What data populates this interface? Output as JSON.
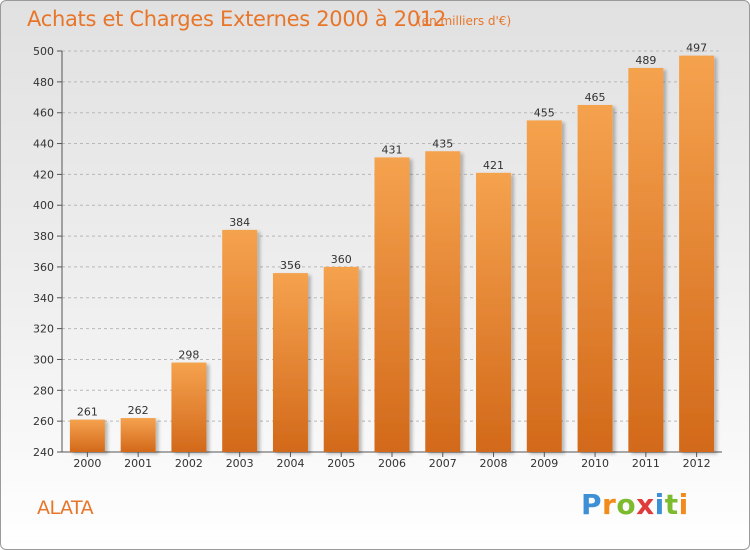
{
  "title": "Achats et Charges Externes 2000 à 2012",
  "unit_note": "(en milliers d'€)",
  "commune": "ALATA",
  "logo": {
    "letters": [
      "P",
      "r",
      "o",
      "x",
      "i",
      "t",
      "i"
    ],
    "colors": [
      "#3d8fd6",
      "#f28a1c",
      "#7dbb2e",
      "#e03a3a",
      "#3d8fd6",
      "#7dbb2e",
      "#f28a1c"
    ]
  },
  "colors": {
    "bar_light": "#f5a24e",
    "bar_dark": "#d2691a",
    "grid": "#b8b8b8",
    "title": "#e8762a"
  },
  "chart_data": {
    "type": "bar",
    "title": "Achats et Charges Externes 2000 à 2012",
    "subtitle": "(en milliers d'€)",
    "xlabel": "",
    "ylabel": "",
    "categories": [
      "2000",
      "2001",
      "2002",
      "2003",
      "2004",
      "2005",
      "2006",
      "2007",
      "2008",
      "2009",
      "2010",
      "2011",
      "2012"
    ],
    "values": [
      261,
      262,
      298,
      384,
      356,
      360,
      431,
      435,
      421,
      455,
      465,
      489,
      497
    ],
    "ylim": [
      240,
      500
    ],
    "yticks": [
      240,
      260,
      280,
      300,
      320,
      340,
      360,
      380,
      400,
      420,
      440,
      460,
      480,
      500
    ],
    "grid": true,
    "legend": "none"
  }
}
